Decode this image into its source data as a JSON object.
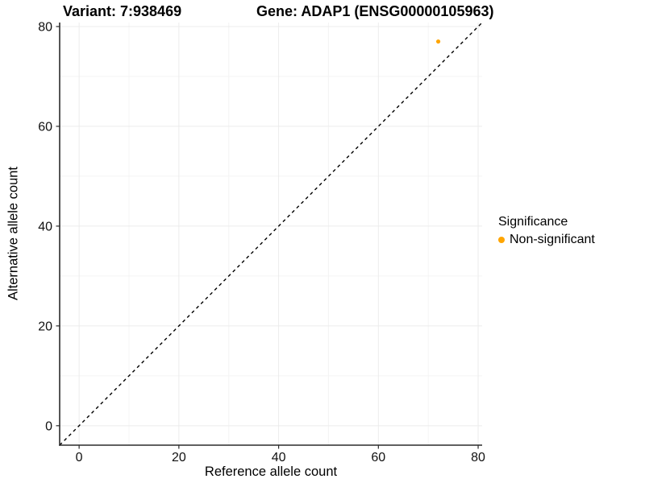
{
  "chart_data": {
    "type": "scatter",
    "title_variant": "Variant: 7:938469",
    "title_gene": "Gene: ADAP1 (ENSG00000105963)",
    "xlabel": "Reference allele count",
    "ylabel": "Alternative allele count",
    "xlim": [
      -3.9,
      80.8
    ],
    "ylim": [
      -3.9,
      80.8
    ],
    "xticks": [
      0,
      20,
      40,
      60,
      80
    ],
    "yticks": [
      0,
      20,
      40,
      60,
      80
    ],
    "x_minor_ticks": [
      10,
      30,
      50,
      70
    ],
    "y_minor_ticks": [
      10,
      30,
      50,
      70
    ],
    "grid": true,
    "points": [
      {
        "x": 72,
        "y": 77,
        "series": "Non-significant"
      }
    ],
    "identity_line": {
      "style": "dashed",
      "slope": 1,
      "intercept": 0,
      "color": "#000000"
    },
    "legend": {
      "title": "Significance",
      "position": "right",
      "items": [
        {
          "label": "Non-significant",
          "color": "#FFA500"
        }
      ]
    },
    "colors": {
      "point": "#FFA500",
      "grid_major": "#ECECEC",
      "grid_minor": "#F4F4F4",
      "axis_line": "#2B2B2B",
      "tick_label": "#111111",
      "background": "#FFFFFF"
    }
  }
}
